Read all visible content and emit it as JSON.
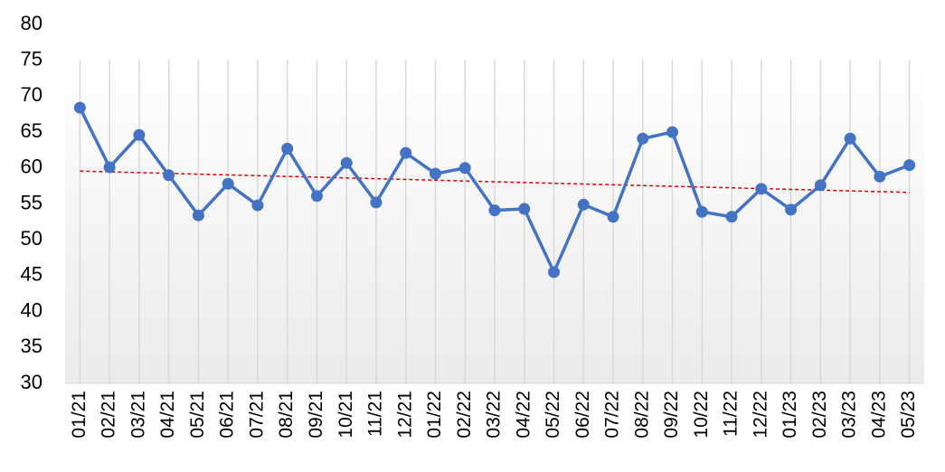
{
  "chart_data": {
    "type": "line",
    "categories": [
      "01/21",
      "02/21",
      "03/21",
      "04/21",
      "05/21",
      "06/21",
      "07/21",
      "08/21",
      "09/21",
      "10/21",
      "11/21",
      "12/21",
      "01/22",
      "02/22",
      "03/22",
      "04/22",
      "05/22",
      "06/22",
      "07/22",
      "08/22",
      "09/22",
      "10/22",
      "11/22",
      "12/22",
      "01/23",
      "02/23",
      "03/23",
      "04/23",
      "05/23"
    ],
    "values": [
      68.4,
      60.1,
      64.6,
      59.0,
      53.4,
      57.8,
      54.8,
      62.7,
      56.1,
      60.7,
      55.2,
      62.1,
      59.2,
      60.0,
      54.1,
      54.3,
      45.5,
      54.9,
      53.2,
      64.1,
      65.0,
      53.9,
      53.2,
      57.1,
      54.2,
      57.6,
      64.1,
      58.8,
      60.4
    ],
    "color": "#4472c4",
    "ylim": [
      30,
      80
    ],
    "yticks": [
      30,
      35,
      40,
      45,
      50,
      55,
      60,
      65,
      70,
      75,
      80
    ],
    "trendline": {
      "type": "linear",
      "color": "#e00000",
      "dashed": true
    }
  }
}
